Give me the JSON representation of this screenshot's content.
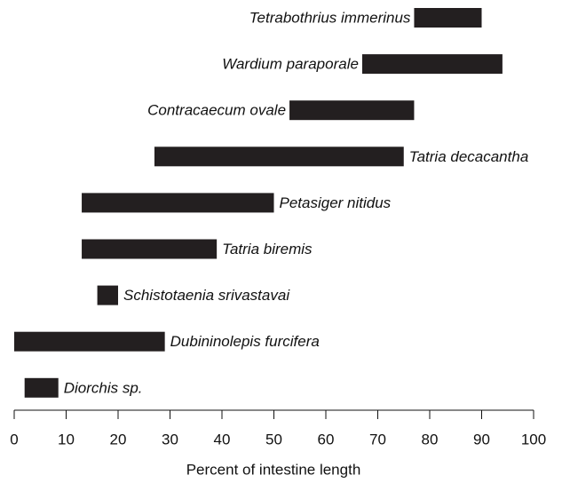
{
  "chart_data": {
    "type": "range_bar",
    "x_label": "Percent of intestine length",
    "categories": [
      "Tetrabothrius immerinus",
      "Wardium paraporale",
      "Contracaecum ovale",
      "Tatria decacantha",
      "Petasiger nitidus",
      "Tatria biremis",
      "Schistotaenia srivastavai",
      "Dubininolepis furcifera",
      "Diorchis sp."
    ],
    "start": [
      77,
      67,
      53,
      27,
      13,
      13,
      16,
      0,
      2
    ],
    "end": [
      90,
      94,
      77,
      75,
      50,
      39,
      20,
      29,
      8.5
    ],
    "color": "#231f20",
    "xlim": [
      0,
      100
    ],
    "xticks": [
      0,
      10,
      20,
      30,
      40,
      50,
      60,
      70,
      80,
      90,
      100
    ]
  }
}
